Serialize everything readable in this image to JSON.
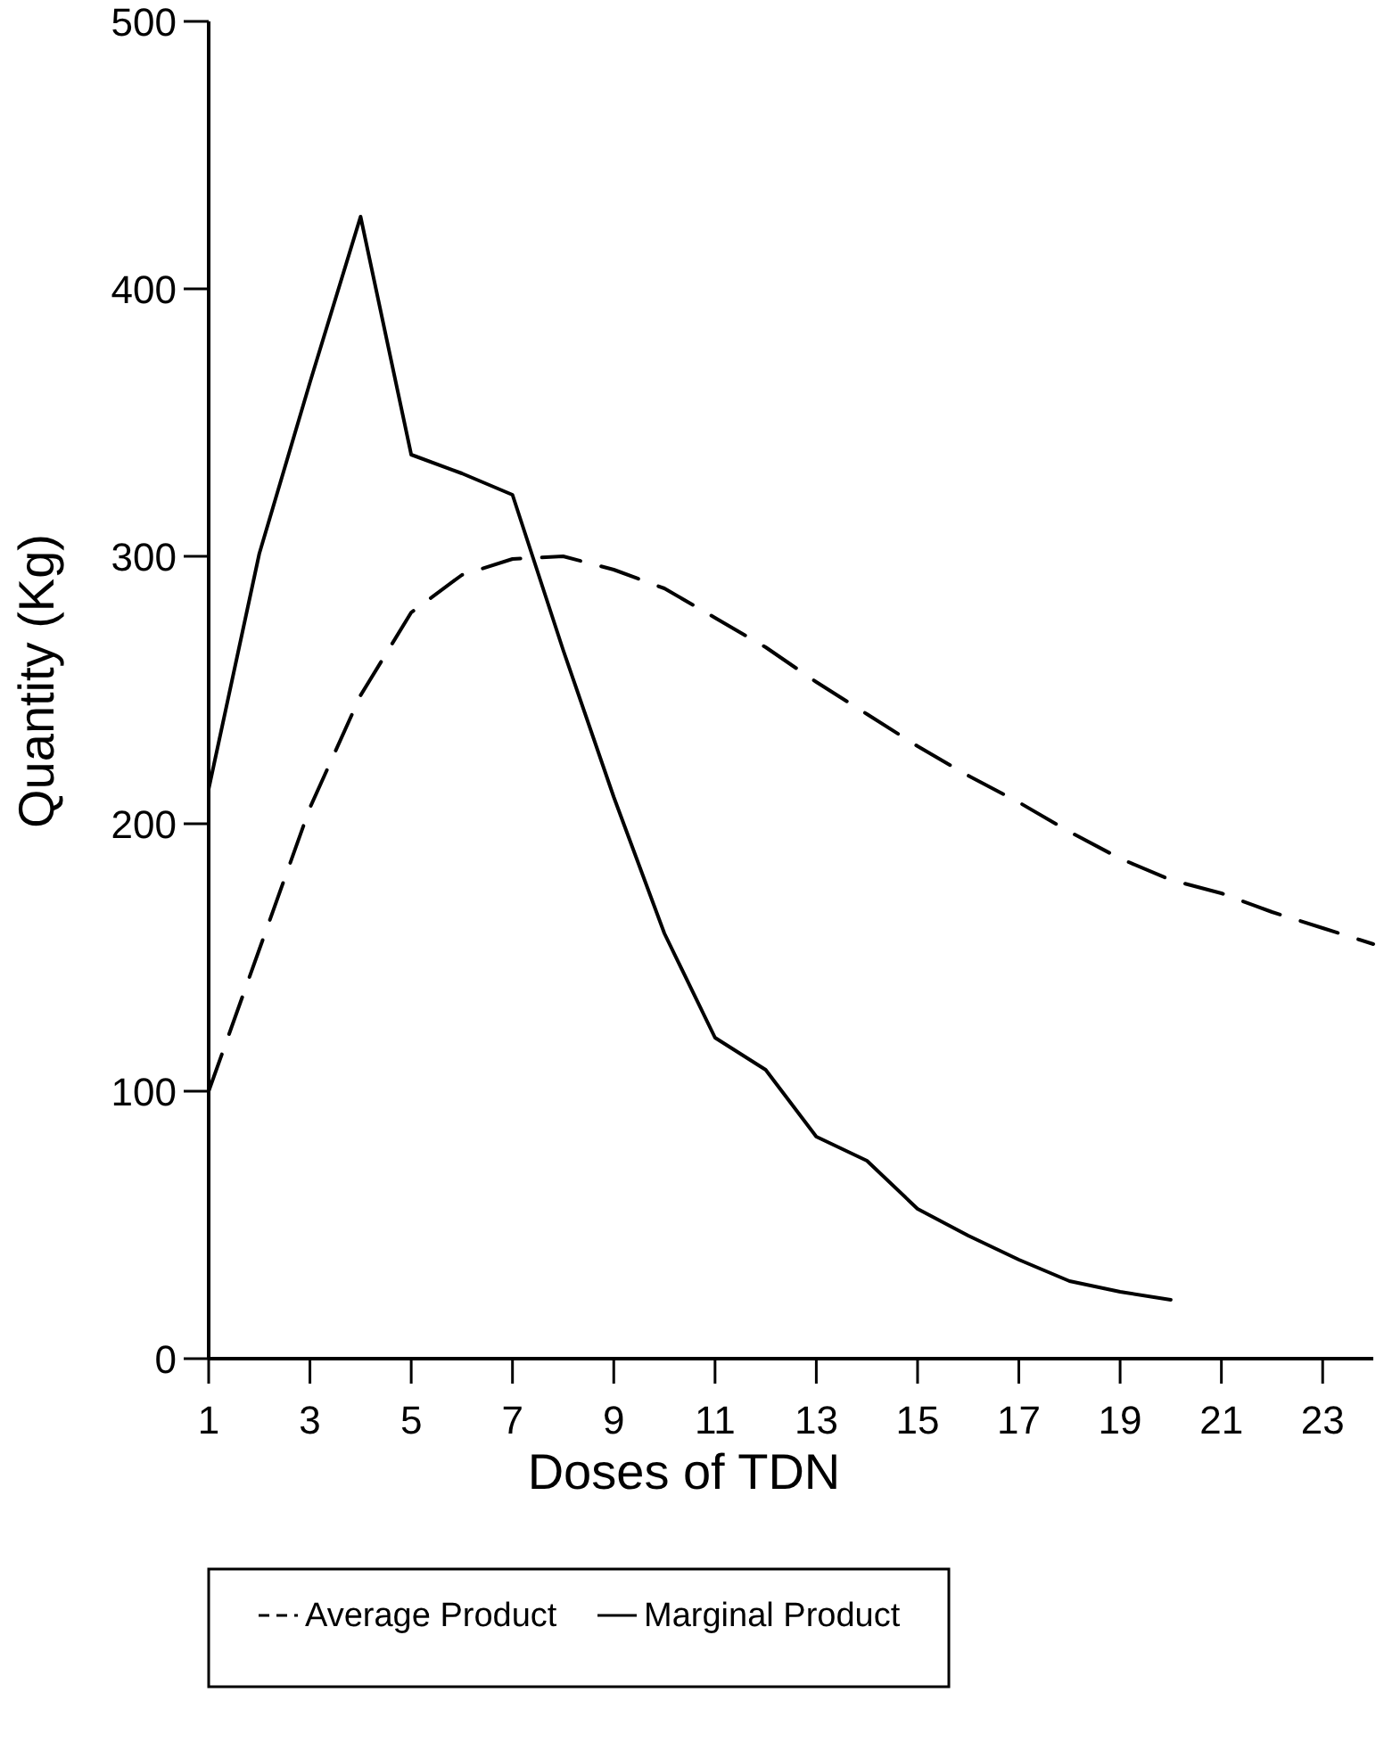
{
  "chart_data": {
    "type": "line",
    "xlabel": "Doses of TDN",
    "ylabel": "Quantity (Kg)",
    "x": [
      1,
      2,
      3,
      4,
      5,
      6,
      7,
      8,
      9,
      10,
      11,
      12,
      13,
      14,
      15,
      16,
      17,
      18,
      19,
      20,
      21,
      22,
      23,
      24
    ],
    "series": [
      {
        "name": "Average Product",
        "color": "#000000",
        "line_style": "dashed",
        "values": [
          100,
          153,
          206,
          248,
          279,
          293,
          299,
          300,
          295,
          288,
          277,
          266,
          253,
          241,
          229,
          218,
          208,
          197,
          187,
          179,
          174,
          167,
          161,
          155
        ]
      },
      {
        "name": "Marginal Product",
        "color": "#000000",
        "line_style": "solid",
        "x": [
          1,
          2,
          3,
          4,
          5,
          6,
          7,
          8,
          9,
          10,
          11,
          12,
          13,
          14,
          15,
          16,
          17,
          18,
          19,
          20
        ],
        "values": [
          213,
          301,
          365,
          427,
          338,
          331,
          323,
          265,
          210,
          159,
          120,
          108,
          83,
          74,
          56,
          46,
          37,
          29,
          25,
          22
        ]
      }
    ],
    "xlim": [
      1,
      24
    ],
    "xticks": [
      1,
      3,
      5,
      7,
      9,
      11,
      13,
      15,
      17,
      19,
      21,
      23
    ],
    "ylim": [
      0,
      500
    ],
    "yticks": [
      0,
      100,
      200,
      300,
      400,
      500
    ],
    "grid": false,
    "legend": "bottom",
    "marker": "none"
  }
}
